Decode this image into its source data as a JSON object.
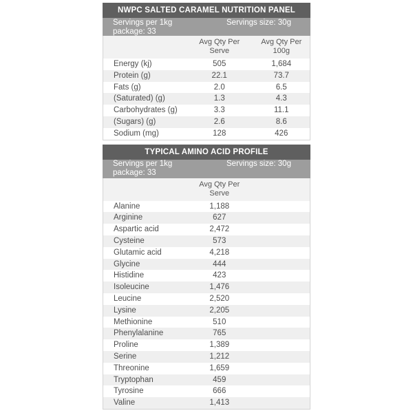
{
  "colors": {
    "title_bar_bg": "#5f5f5f",
    "subheader_bg": "#9d9d9d",
    "column_header_bg": "#f2f2f2",
    "row_alt_bg": "#efefef",
    "row_bg": "#ffffff",
    "border": "#d3d3d3",
    "body_text": "#4e4e4e",
    "header_text": "#ffffff"
  },
  "nutrition_panel": {
    "title": "NWPC SALTED CARAMEL NUTRITION PANEL",
    "servings_per_package": "Servings per 1kg package: 33",
    "servings_size": "Servings size: 30g",
    "columns": {
      "serve_line1": "Avg Qty Per",
      "serve_line2": "Serve",
      "per100g_line1": "Avg Qty Per",
      "per100g_line2": "100g"
    },
    "rows": [
      {
        "label": "Energy (kj)",
        "serve": "505",
        "per100g": "1,684"
      },
      {
        "label": "Protein (g)",
        "serve": "22.1",
        "per100g": "73.7"
      },
      {
        "label": "Fats (g)",
        "serve": "2.0",
        "per100g": "6.5"
      },
      {
        "label": "(Saturated) (g)",
        "serve": "1.3",
        "per100g": "4.3"
      },
      {
        "label": "Carbohydrates (g)",
        "serve": "3.3",
        "per100g": "11.1"
      },
      {
        "label": "(Sugars) (g)",
        "serve": "2.6",
        "per100g": "8.6"
      },
      {
        "label": "Sodium (mg)",
        "serve": "128",
        "per100g": "426"
      }
    ]
  },
  "amino_profile": {
    "title": "TYPICAL AMINO ACID PROFILE",
    "servings_per_package": "Servings per 1kg package: 33",
    "servings_size": "Servings size: 30g",
    "columns": {
      "serve_line1": "Avg Qty Per",
      "serve_line2": "Serve"
    },
    "rows": [
      {
        "label": "Alanine",
        "serve": "1,188"
      },
      {
        "label": "Arginine",
        "serve": "627"
      },
      {
        "label": "Aspartic acid",
        "serve": "2,472"
      },
      {
        "label": "Cysteine",
        "serve": "573"
      },
      {
        "label": "Glutamic acid",
        "serve": "4,218"
      },
      {
        "label": "Glycine",
        "serve": "444"
      },
      {
        "label": "Histidine",
        "serve": "423"
      },
      {
        "label": "Isoleucine",
        "serve": "1,476"
      },
      {
        "label": "Leucine",
        "serve": "2,520"
      },
      {
        "label": "Lysine",
        "serve": "2,205"
      },
      {
        "label": "Methionine",
        "serve": "510"
      },
      {
        "label": "Phenylalanine",
        "serve": "765"
      },
      {
        "label": "Proline",
        "serve": "1,389"
      },
      {
        "label": "Serine",
        "serve": "1,212"
      },
      {
        "label": "Threonine",
        "serve": "1,659"
      },
      {
        "label": "Tryptophan",
        "serve": "459"
      },
      {
        "label": "Tyrosine",
        "serve": "666"
      },
      {
        "label": "Valine",
        "serve": "1,413"
      }
    ]
  }
}
